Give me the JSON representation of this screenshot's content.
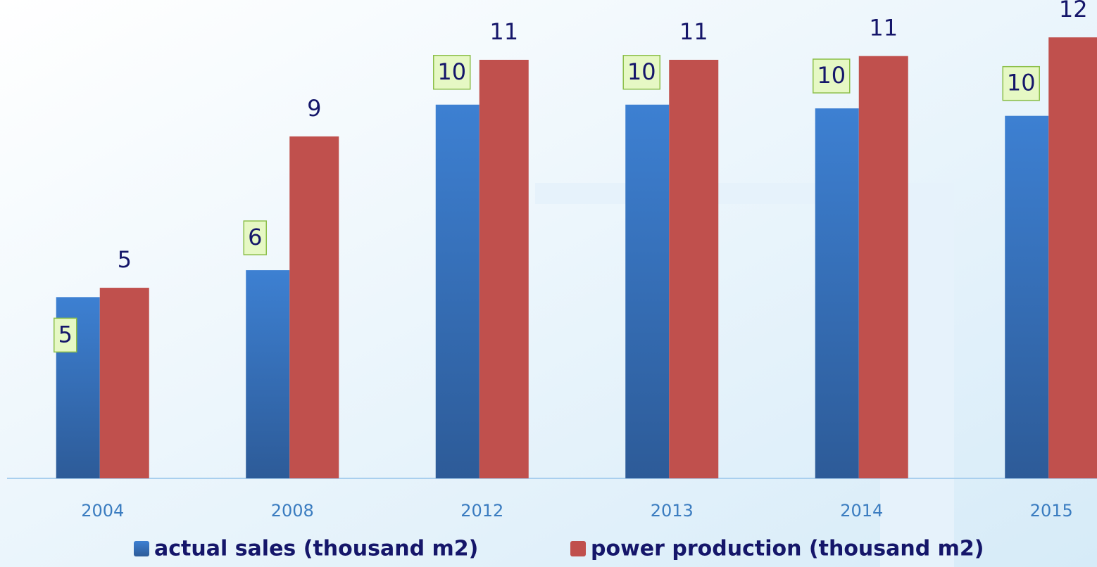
{
  "chart_data": {
    "type": "bar",
    "categories": [
      "2004",
      "2008",
      "2012",
      "2013",
      "2014",
      "2015"
    ],
    "series": [
      {
        "name": "actual sales (thousand m2)",
        "color": "#3a78c8",
        "values": [
          4.85,
          5.57,
          10.0,
          10.0,
          9.9,
          9.7
        ],
        "value_labels": [
          "5",
          "6",
          "10",
          "10",
          "10",
          "10"
        ]
      },
      {
        "name": "power production (thousand m2)",
        "color": "#c0504d",
        "values": [
          5.1,
          9.15,
          11.2,
          11.2,
          11.3,
          11.8
        ],
        "value_labels": [
          "5",
          "9",
          "11",
          "11",
          "11",
          "12"
        ]
      }
    ],
    "ylim": [
      0,
      12.8
    ],
    "legend": "bottom"
  }
}
